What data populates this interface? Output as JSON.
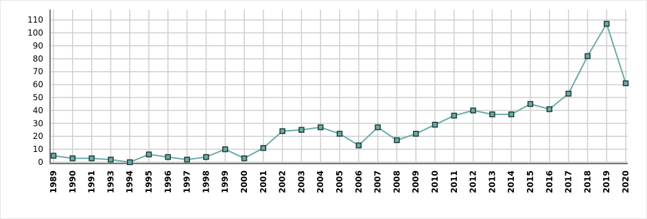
{
  "chart_data": {
    "type": "line",
    "categories": [
      "1989",
      "1990",
      "1991",
      "1993",
      "1994",
      "1995",
      "1996",
      "1997",
      "1998",
      "1999",
      "2000",
      "2001",
      "2002",
      "2003",
      "2004",
      "2005",
      "2006",
      "2007",
      "2008",
      "2009",
      "2010",
      "2011",
      "2012",
      "2013",
      "2014",
      "2015",
      "2016",
      "2017",
      "2018",
      "2019",
      "2020"
    ],
    "values": [
      5,
      3,
      3,
      2,
      0,
      6,
      4,
      2,
      4,
      10,
      3,
      11,
      24,
      25,
      27,
      22,
      13,
      27,
      17,
      22,
      29,
      36,
      40,
      37,
      37,
      45,
      41,
      53,
      82,
      107,
      61
    ],
    "color": "#6aaba5",
    "ylim": [
      0,
      118
    ],
    "yticks": [
      0,
      10,
      20,
      30,
      40,
      50,
      60,
      70,
      80,
      90,
      100,
      110
    ],
    "grid": true
  }
}
